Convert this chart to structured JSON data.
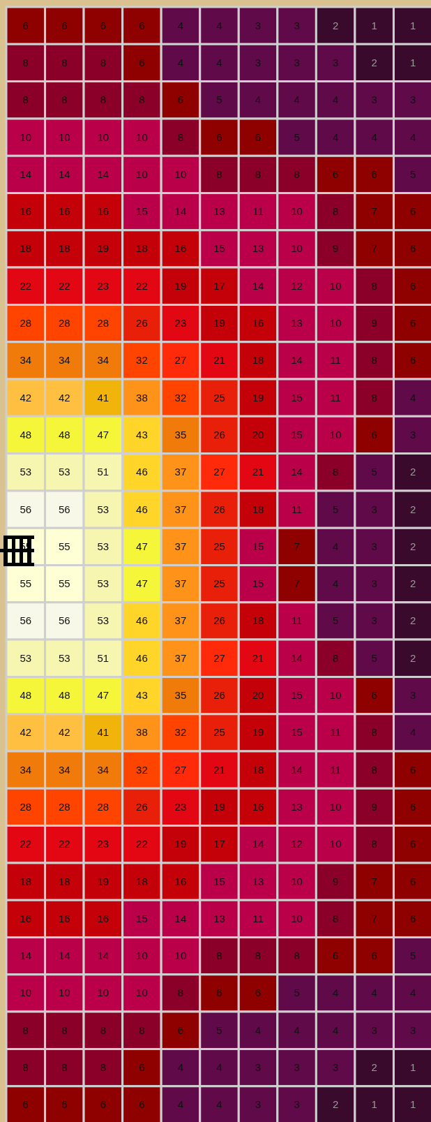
{
  "chart_data": {
    "type": "heatmap",
    "categories": [
      null,
      null,
      null,
      null,
      null,
      null,
      null,
      null,
      null,
      null,
      null
    ],
    "y_categories": [
      null,
      null,
      null,
      null,
      null,
      null,
      null,
      null,
      null,
      null,
      null,
      null,
      null,
      null,
      null,
      null,
      null,
      null,
      null,
      null,
      null,
      null,
      null,
      null,
      null,
      null,
      null,
      null,
      null,
      null
    ],
    "cells": [
      [
        6,
        6,
        6,
        6,
        4,
        4,
        3,
        3,
        2,
        1,
        1
      ],
      [
        8,
        8,
        8,
        6,
        4,
        4,
        3,
        3,
        3,
        2,
        1
      ],
      [
        8,
        8,
        8,
        8,
        6,
        5,
        4,
        4,
        4,
        3,
        3
      ],
      [
        10,
        10,
        10,
        10,
        8,
        6,
        6,
        5,
        4,
        4,
        4
      ],
      [
        14,
        14,
        14,
        10,
        10,
        8,
        8,
        8,
        6,
        6,
        5
      ],
      [
        16,
        16,
        16,
        15,
        14,
        13,
        11,
        10,
        8,
        7,
        6
      ],
      [
        18,
        18,
        19,
        18,
        16,
        15,
        13,
        10,
        9,
        7,
        6
      ],
      [
        22,
        22,
        23,
        22,
        19,
        17,
        14,
        12,
        10,
        8,
        6
      ],
      [
        28,
        28,
        28,
        26,
        23,
        19,
        16,
        13,
        10,
        9,
        6
      ],
      [
        34,
        34,
        34,
        32,
        27,
        21,
        18,
        14,
        11,
        8,
        6
      ],
      [
        42,
        42,
        41,
        38,
        32,
        25,
        19,
        15,
        11,
        8,
        4
      ],
      [
        48,
        48,
        47,
        43,
        35,
        26,
        20,
        15,
        10,
        6,
        3
      ],
      [
        53,
        53,
        51,
        46,
        37,
        27,
        21,
        14,
        8,
        5,
        2
      ],
      [
        56,
        56,
        53,
        46,
        37,
        26,
        18,
        11,
        5,
        3,
        2
      ],
      [
        55,
        55,
        53,
        47,
        37,
        25,
        15,
        7,
        4,
        3,
        2
      ],
      [
        55,
        55,
        53,
        47,
        37,
        25,
        15,
        7,
        4,
        3,
        2
      ],
      [
        56,
        56,
        53,
        46,
        37,
        26,
        18,
        11,
        5,
        3,
        2
      ],
      [
        53,
        53,
        51,
        46,
        37,
        27,
        21,
        14,
        8,
        5,
        2
      ],
      [
        48,
        48,
        47,
        43,
        35,
        26,
        20,
        15,
        10,
        6,
        3
      ],
      [
        42,
        42,
        41,
        38,
        32,
        25,
        19,
        15,
        11,
        8,
        4
      ],
      [
        34,
        34,
        34,
        32,
        27,
        21,
        18,
        14,
        11,
        8,
        6
      ],
      [
        28,
        28,
        28,
        26,
        23,
        19,
        16,
        13,
        10,
        9,
        6
      ],
      [
        22,
        22,
        23,
        22,
        19,
        17,
        14,
        12,
        10,
        8,
        6
      ],
      [
        18,
        18,
        19,
        18,
        16,
        15,
        13,
        10,
        9,
        7,
        6
      ],
      [
        16,
        16,
        16,
        15,
        14,
        13,
        11,
        10,
        8,
        7,
        6
      ],
      [
        14,
        14,
        14,
        10,
        10,
        8,
        8,
        8,
        6,
        6,
        5
      ],
      [
        10,
        10,
        10,
        10,
        8,
        6,
        6,
        5,
        4,
        4,
        4
      ],
      [
        8,
        8,
        8,
        8,
        6,
        5,
        4,
        4,
        4,
        3,
        3
      ],
      [
        8,
        8,
        8,
        6,
        4,
        4,
        3,
        3,
        3,
        2,
        1
      ],
      [
        6,
        6,
        6,
        6,
        4,
        4,
        3,
        3,
        2,
        1,
        1
      ]
    ],
    "data_labels": true,
    "tick_labels": false
  }
}
